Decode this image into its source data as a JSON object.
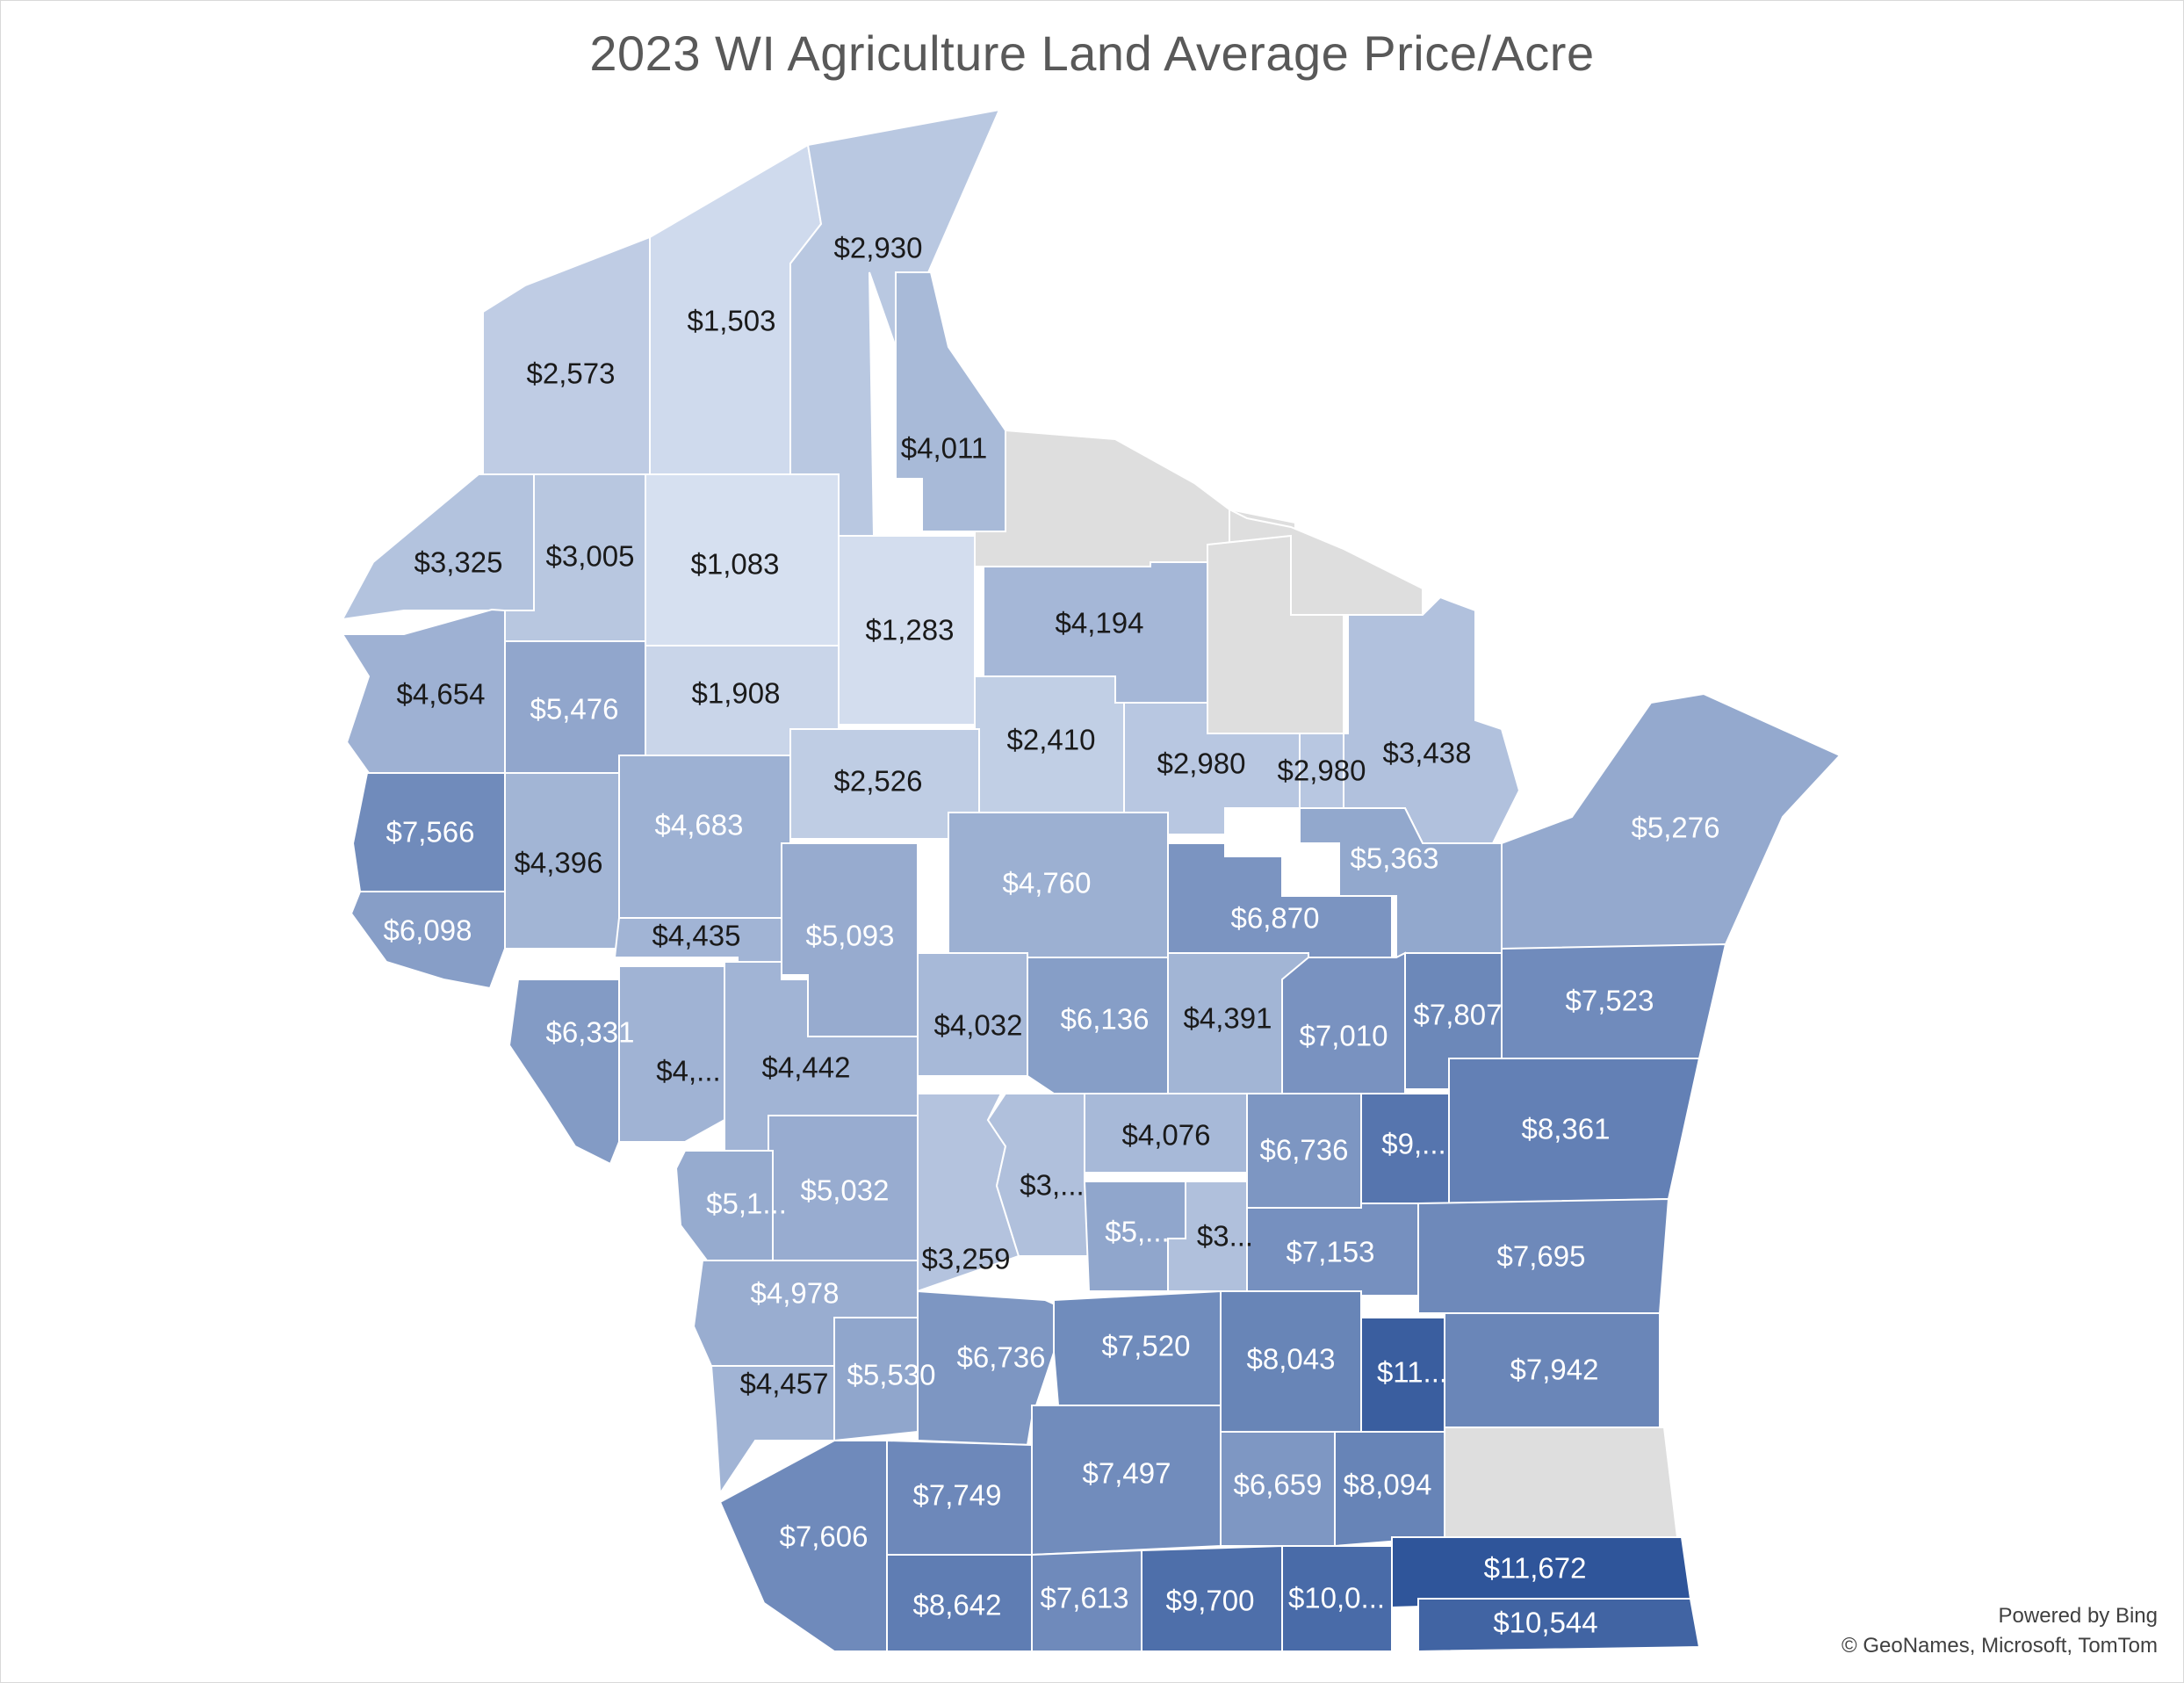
{
  "title": "2023 WI Agriculture Land Average Price/Acre",
  "credits": {
    "line1": "Powered by Bing",
    "line2": "© GeoNames, Microsoft, TomTom"
  },
  "colors": {
    "no_data": "#dedede",
    "blank": "#ffffff",
    "light_text": "#ffffff",
    "dark_text": "#1a1a1a",
    "ramp_low": "#d6e0f0",
    "ramp_high": "#2f559a"
  },
  "legend_range": [
    1083,
    11672
  ],
  "regions": [
    {
      "id": "douglas",
      "label": "$2,573",
      "value": 2573
    },
    {
      "id": "bayfield",
      "label": "$1,503",
      "value": 1503
    },
    {
      "id": "ashland",
      "label": "$2,930",
      "value": 2930
    },
    {
      "id": "iron",
      "label": "$4,011",
      "value": 4011
    },
    {
      "id": "vilas",
      "label": "",
      "value": null
    },
    {
      "id": "florence",
      "label": "",
      "value": null
    },
    {
      "id": "burnett",
      "label": "$3,325",
      "value": 3325
    },
    {
      "id": "washburn",
      "label": "$3,005",
      "value": 3005
    },
    {
      "id": "sawyer",
      "label": "$1,083",
      "value": 1083
    },
    {
      "id": "price",
      "label": "$1,283",
      "value": 1283
    },
    {
      "id": "oneida",
      "label": "$4,194",
      "value": 4194
    },
    {
      "id": "forest",
      "label": "",
      "value": null
    },
    {
      "id": "marinette",
      "label": "$3,438",
      "value": 3438
    },
    {
      "id": "polk",
      "label": "$4,654",
      "value": 4654
    },
    {
      "id": "barron",
      "label": "$5,476",
      "value": 5476
    },
    {
      "id": "rusk",
      "label": "$1,908",
      "value": 1908
    },
    {
      "id": "taylor",
      "label": "$2,410",
      "value": 2410
    },
    {
      "id": "lincoln",
      "label": "$2,980",
      "value": 2980
    },
    {
      "id": "langlade",
      "label": "$2,980",
      "value": 2980
    },
    {
      "id": "menominee",
      "label": "",
      "value": null
    },
    {
      "id": "oconto",
      "label": "$5,363",
      "value": 5363
    },
    {
      "id": "door",
      "label": "$5,276",
      "value": 5276
    },
    {
      "id": "st_croix",
      "label": "$7,566",
      "value": 7566
    },
    {
      "id": "dunn",
      "label": "$4,396",
      "value": 4396
    },
    {
      "id": "chippewa",
      "label": "$4,683",
      "value": 4683
    },
    {
      "id": "clark",
      "label": "$2,526",
      "value": 2526
    },
    {
      "id": "marathon",
      "label": "$4,760",
      "value": 4760
    },
    {
      "id": "shawano",
      "label": "$6,870",
      "value": 6870
    },
    {
      "id": "pierce",
      "label": "$6,098",
      "value": 6098
    },
    {
      "id": "pepin_eau_claire",
      "label": "$4,435",
      "value": 4435
    },
    {
      "id": "wood",
      "label": "$5,093",
      "value": 5093
    },
    {
      "id": "portage",
      "label": "$4,032",
      "value": 4032
    },
    {
      "id": "waupaca",
      "label": "$6,136",
      "value": 6136
    },
    {
      "id": "outagamie",
      "label": "$4,391",
      "value": 4391
    },
    {
      "id": "brown",
      "label": "$7,010",
      "value": 7010
    },
    {
      "id": "kewaunee",
      "label": "$7,807",
      "value": 7807
    },
    {
      "id": "manitowoc",
      "label": "$7,523",
      "value": 7523
    },
    {
      "id": "buffalo",
      "label": "$6,331",
      "value": 6331
    },
    {
      "id": "trempealeau",
      "label": "$4,...",
      "value": null
    },
    {
      "id": "jackson",
      "label": "$4,442",
      "value": 4442
    },
    {
      "id": "waushara",
      "label": "$4,076",
      "value": 4076
    },
    {
      "id": "winnebago",
      "label": "$6,736",
      "value": 6736
    },
    {
      "id": "calumet",
      "label": "$9,...",
      "value": null
    },
    {
      "id": "sheboygan",
      "label": "$8,361",
      "value": 8361
    },
    {
      "id": "la_crosse",
      "label": "$5,1...",
      "value": null
    },
    {
      "id": "monroe",
      "label": "$5,032",
      "value": 5032
    },
    {
      "id": "juneau",
      "label": "$3,259",
      "value": 3259
    },
    {
      "id": "adams",
      "label": "$3,...",
      "value": null
    },
    {
      "id": "marquette",
      "label": "$5,...",
      "value": null
    },
    {
      "id": "green_lake",
      "label": "$3...",
      "value": null
    },
    {
      "id": "fond_du_lac",
      "label": "$7,153",
      "value": 7153
    },
    {
      "id": "ozaukee",
      "label": "$7,695",
      "value": 7695
    },
    {
      "id": "vernon",
      "label": "$4,978",
      "value": 4978
    },
    {
      "id": "crawford",
      "label": "$4,457",
      "value": 4457
    },
    {
      "id": "richland",
      "label": "$5,530",
      "value": 5530
    },
    {
      "id": "sauk",
      "label": "$6,736",
      "value": 6736
    },
    {
      "id": "columbia",
      "label": "$7,520",
      "value": 7520
    },
    {
      "id": "dodge",
      "label": "$8,043",
      "value": 8043
    },
    {
      "id": "washington",
      "label": "$11...",
      "value": null
    },
    {
      "id": "waukesha",
      "label": "$7,942",
      "value": 7942
    },
    {
      "id": "milwaukee",
      "label": "",
      "value": null
    },
    {
      "id": "grant",
      "label": "$7,606",
      "value": 7606
    },
    {
      "id": "iowa",
      "label": "$7,749",
      "value": 7749
    },
    {
      "id": "dane",
      "label": "$7,497",
      "value": 7497
    },
    {
      "id": "jefferson",
      "label": "$6,659",
      "value": 6659
    },
    {
      "id": "waukesha2",
      "label": "$8,094",
      "value": 8094
    },
    {
      "id": "lafayette",
      "label": "$8,642",
      "value": 8642
    },
    {
      "id": "green",
      "label": "$7,613",
      "value": 7613
    },
    {
      "id": "rock",
      "label": "$9,700",
      "value": 9700
    },
    {
      "id": "walworth",
      "label": "$10,0...",
      "value": null
    },
    {
      "id": "racine",
      "label": "$11,672",
      "value": 11672
    },
    {
      "id": "kenosha",
      "label": "$10,544",
      "value": 10544
    }
  ]
}
